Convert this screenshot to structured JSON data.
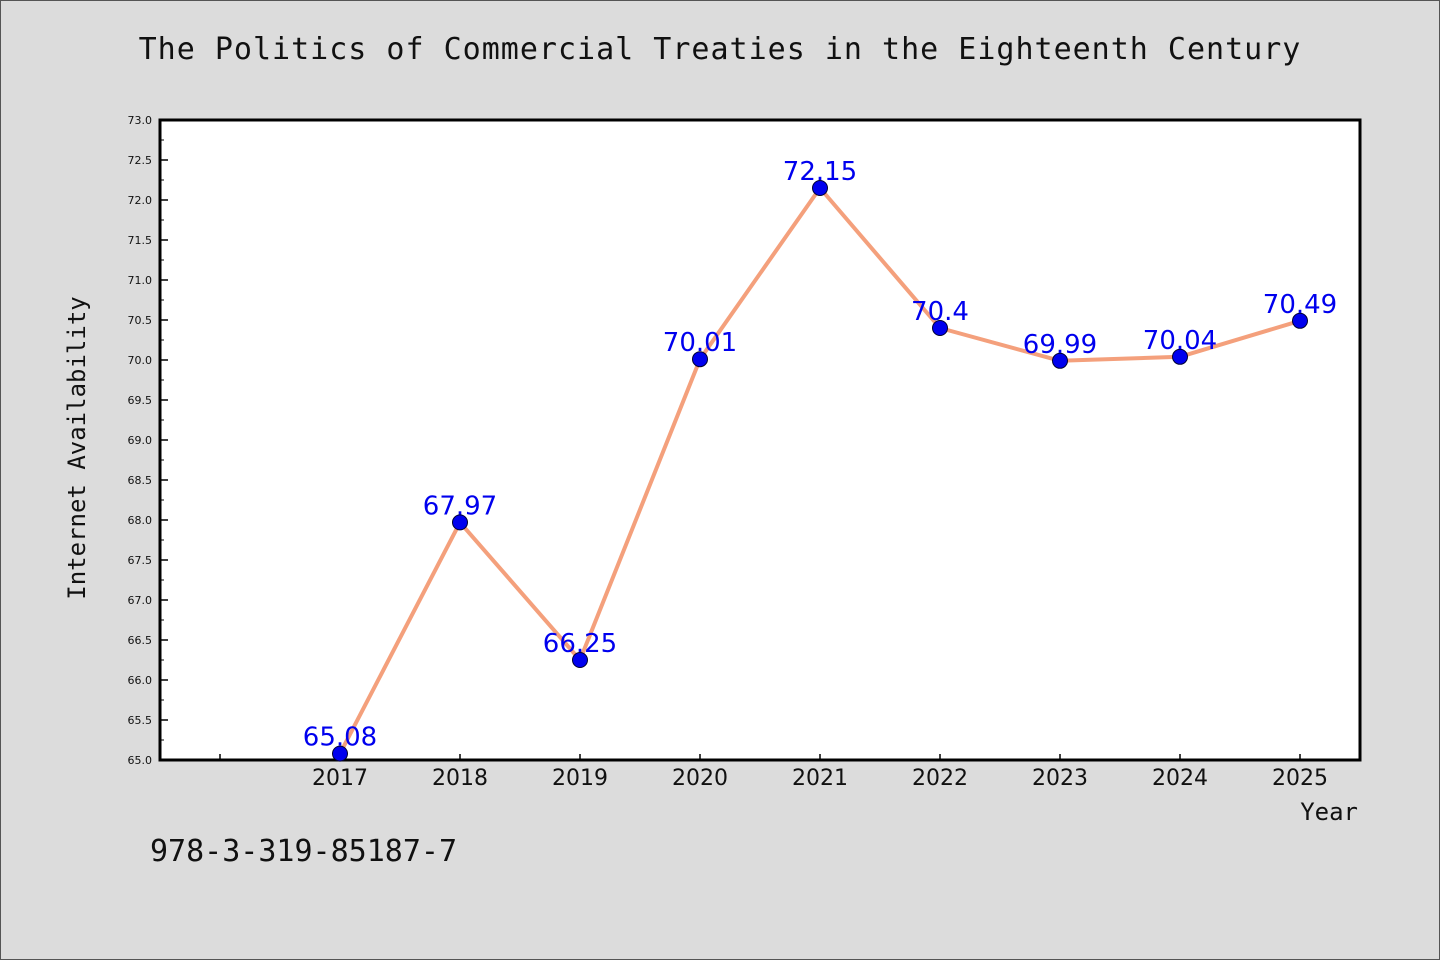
{
  "title": "The Politics of Commercial Treaties in the Eighteenth Century",
  "footer_text": "978-3-319-85187-7",
  "colors": {
    "background": "#dcdcdc",
    "plot_background": "#ffffff",
    "line": "#f4a07c",
    "marker": "#0000ee",
    "label": "#0000ee"
  },
  "chart_data": {
    "type": "line",
    "title": "The Politics of Commercial Treaties in the Eighteenth Century",
    "xlabel": "Year",
    "ylabel": "Internet Availability",
    "categories": [
      "2017",
      "2018",
      "2019",
      "2020",
      "2021",
      "2022",
      "2023",
      "2024",
      "2025"
    ],
    "series": [
      {
        "values": [
          65.08,
          67.97,
          66.25,
          70.01,
          72.15,
          70.4,
          69.99,
          70.04,
          70.49
        ],
        "labels": [
          "65.08",
          "67.97",
          "66.25",
          "70.01",
          "72.15",
          "70.4",
          "69.99",
          "70.04",
          "70.49"
        ]
      }
    ],
    "ylim": [
      65.0,
      73.0
    ],
    "yticks": [
      "65.0",
      "65.5",
      "66.0",
      "66.5",
      "67.0",
      "67.5",
      "68.0",
      "68.5",
      "69.0",
      "69.5",
      "70.0",
      "70.5",
      "71.0",
      "71.5",
      "72.0",
      "72.5",
      "73.0"
    ],
    "grid": false,
    "legend": "none"
  }
}
